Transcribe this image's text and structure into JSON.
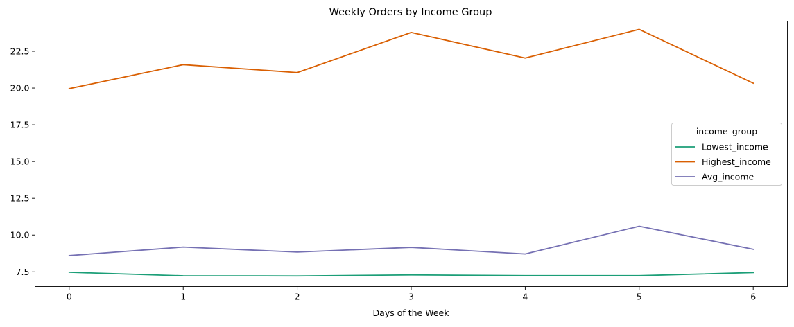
{
  "chart_data": {
    "type": "line",
    "title": "Weekly Orders by Income Group",
    "xlabel": "Days of the Week",
    "ylabel": "",
    "x": [
      0,
      1,
      2,
      3,
      4,
      5,
      6
    ],
    "xticks": [
      "0",
      "1",
      "2",
      "3",
      "4",
      "5",
      "6"
    ],
    "xlim": [
      -0.3,
      6.3
    ],
    "yticks": [
      "7.5",
      "10.0",
      "12.5",
      "15.0",
      "17.5",
      "20.0",
      "22.5"
    ],
    "ytick_values": [
      7.5,
      10.0,
      12.5,
      15.0,
      17.5,
      20.0,
      22.5
    ],
    "ylim": [
      6.5,
      24.55
    ],
    "grid": false,
    "legend": {
      "title": "income_group",
      "placement": "center-right"
    },
    "series": [
      {
        "name": "Lowest_income",
        "color": "#1b9e77",
        "values": [
          7.47,
          7.23,
          7.22,
          7.29,
          7.24,
          7.24,
          7.45
        ]
      },
      {
        "name": "Highest_income",
        "color": "#d95f02",
        "values": [
          19.96,
          21.59,
          21.05,
          23.78,
          22.04,
          23.99,
          20.33
        ]
      },
      {
        "name": "Avg_income",
        "color": "#7570b3",
        "values": [
          8.6,
          9.18,
          8.84,
          9.16,
          8.71,
          10.6,
          9.03
        ]
      }
    ]
  }
}
